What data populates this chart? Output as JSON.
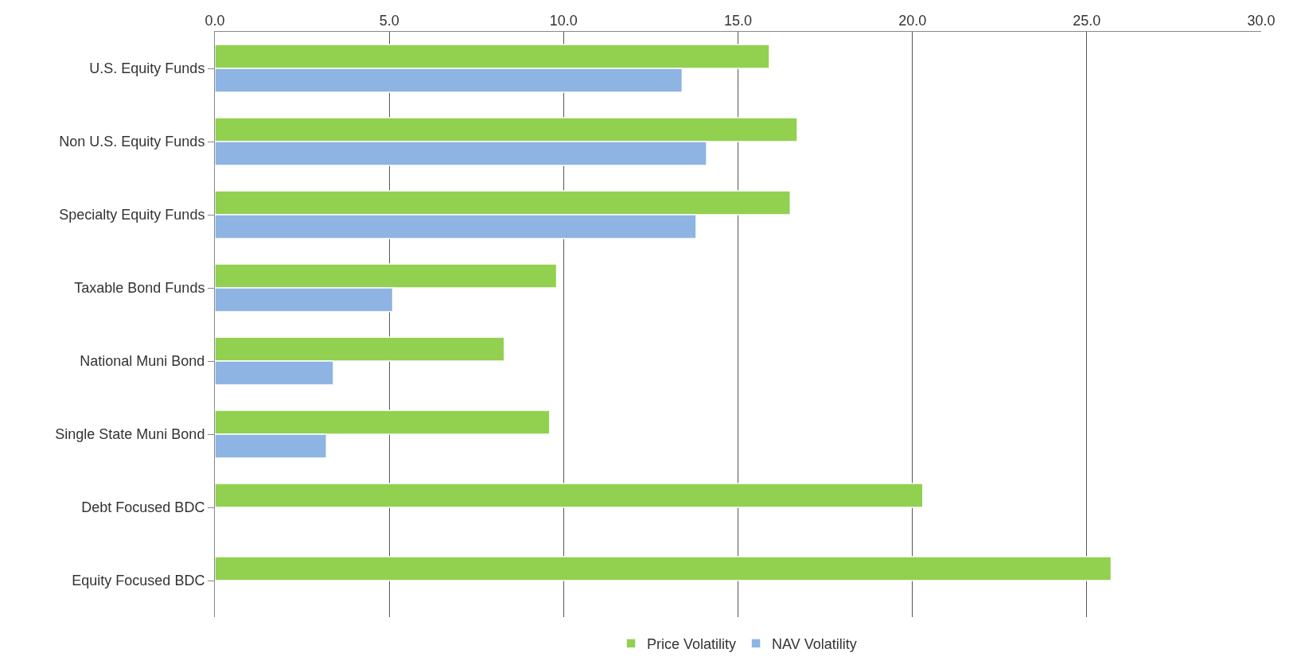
{
  "chart_data": {
    "type": "bar",
    "orientation": "horizontal",
    "categories": [
      "U.S. Equity Funds",
      "Non U.S. Equity Funds",
      "Specialty Equity Funds",
      "Taxable Bond Funds",
      "National Muni Bond",
      "Single State Muni Bond",
      "Debt Focused BDC",
      "Equity Focused BDC"
    ],
    "series": [
      {
        "name": "Price Volatility",
        "color": "#92d050",
        "values": [
          15.9,
          16.7,
          16.5,
          9.8,
          8.3,
          9.6,
          20.3,
          25.7
        ]
      },
      {
        "name": "NAV Volatility",
        "color": "#8db4e2",
        "values": [
          13.4,
          14.1,
          13.8,
          5.1,
          3.4,
          3.2,
          null,
          null
        ]
      }
    ],
    "xlim": [
      0,
      30
    ],
    "xticks": [
      {
        "value": 0,
        "label": "0.0"
      },
      {
        "value": 5,
        "label": "5.0"
      },
      {
        "value": 10,
        "label": "10.0"
      },
      {
        "value": 15,
        "label": "15.0"
      },
      {
        "value": 20,
        "label": "20.0"
      },
      {
        "value": 25,
        "label": "25.0"
      },
      {
        "value": 30,
        "label": "30.0"
      }
    ],
    "grid": "x",
    "legend": "bottom"
  }
}
